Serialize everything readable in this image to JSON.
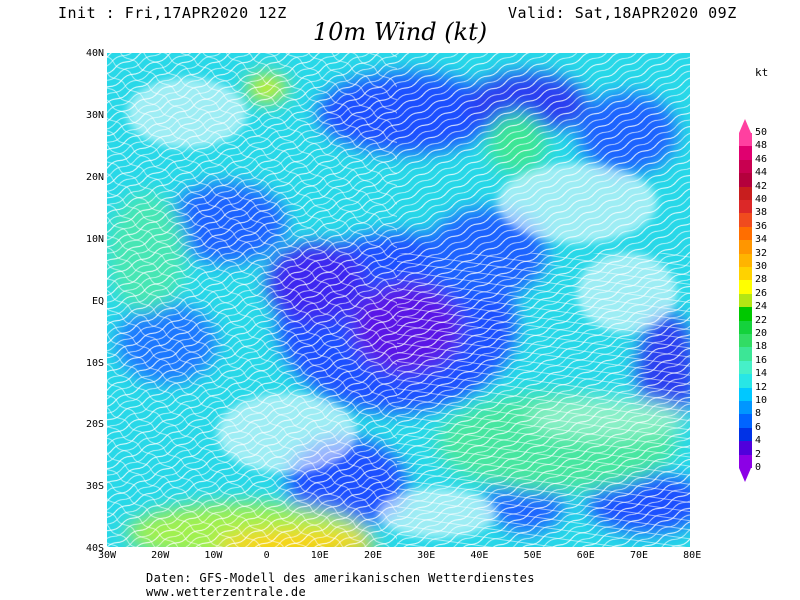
{
  "header": {
    "init": "Init : Fri,17APR2020 12Z",
    "valid": "Valid: Sat,18APR2020 09Z",
    "title": "10m Wind (kt)"
  },
  "axes": {
    "lat_labels": [
      "40N",
      "30N",
      "20N",
      "10N",
      "EQ",
      "10S",
      "20S",
      "30S",
      "40S"
    ],
    "lon_labels": [
      "30W",
      "20W",
      "10W",
      "0",
      "10E",
      "20E",
      "30E",
      "40E",
      "50E",
      "60E",
      "70E",
      "80E"
    ]
  },
  "colorbar": {
    "unit": "kt",
    "levels": [
      "50",
      "48",
      "46",
      "44",
      "42",
      "40",
      "38",
      "36",
      "34",
      "32",
      "30",
      "28",
      "26",
      "24",
      "22",
      "20",
      "18",
      "16",
      "14",
      "12",
      "10",
      "8",
      "6",
      "4",
      "2",
      "0"
    ],
    "colors": [
      "#ff40a0",
      "#e0006f",
      "#c80050",
      "#b4003c",
      "#c81e1e",
      "#dc2828",
      "#f04b1e",
      "#ff6e00",
      "#ff9600",
      "#ffb400",
      "#ffd200",
      "#ffff00",
      "#b4e614",
      "#00c800",
      "#14d23c",
      "#32dc64",
      "#3ce696",
      "#46f0c8",
      "#28e6e6",
      "#00c8ff",
      "#0096ff",
      "#0064ff",
      "#0032e6",
      "#5000dc",
      "#8c00e6"
    ]
  },
  "footer": {
    "credit1": "Daten: GFS-Modell des amerikanischen Wetterdienstes",
    "credit2": "www.wetterzentrale.de"
  }
}
